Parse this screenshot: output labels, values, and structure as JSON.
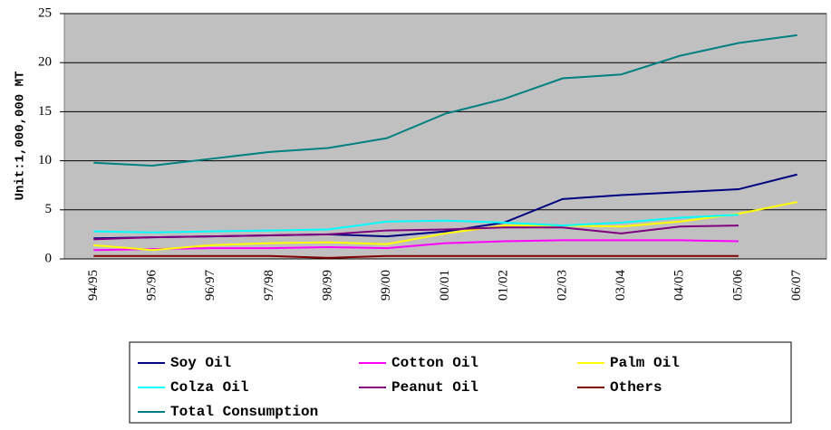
{
  "chart_data": {
    "type": "line",
    "y_label": "Unit:1,000,000 MT",
    "categories": [
      "94/95",
      "95/96",
      "96/97",
      "97/98",
      "98/99",
      "99/00",
      "00/01",
      "01/02",
      "02/03",
      "03/04",
      "04/05",
      "05/06",
      "06/07"
    ],
    "ylim": [
      0,
      25
    ],
    "yticks": [
      0,
      5,
      10,
      15,
      20,
      25
    ],
    "grid": true,
    "series": [
      {
        "name": "Soy Oil",
        "color": "#000080",
        "values": [
          2.1,
          2.2,
          2.3,
          2.4,
          2.5,
          2.3,
          2.8,
          3.7,
          6.1,
          6.5,
          6.8,
          7.1,
          8.6
        ]
      },
      {
        "name": "Cotton Oil",
        "color": "#ff00ff",
        "values": [
          0.9,
          1.0,
          1.1,
          1.1,
          1.2,
          1.1,
          1.6,
          1.8,
          1.9,
          1.9,
          1.9,
          1.8,
          null
        ]
      },
      {
        "name": "Palm Oil",
        "color": "#ffff00",
        "values": [
          1.4,
          0.9,
          1.4,
          1.6,
          1.7,
          1.5,
          2.6,
          3.4,
          3.4,
          3.3,
          3.8,
          4.6,
          5.8
        ]
      },
      {
        "name": "Colza Oil",
        "color": "#00ffff",
        "values": [
          2.8,
          2.7,
          2.8,
          2.9,
          3.0,
          3.8,
          3.9,
          3.7,
          3.4,
          3.7,
          4.2,
          4.5,
          null
        ]
      },
      {
        "name": "Peanut Oil",
        "color": "#800080",
        "values": [
          2.0,
          2.2,
          2.3,
          2.4,
          2.5,
          2.9,
          3.0,
          3.2,
          3.2,
          2.6,
          3.3,
          3.4,
          null
        ]
      },
      {
        "name": "Others",
        "color": "#800000",
        "values": [
          0.3,
          0.3,
          0.3,
          0.3,
          0.1,
          0.3,
          0.3,
          0.3,
          0.3,
          0.3,
          0.3,
          0.3,
          null
        ]
      },
      {
        "name": "Total Consumption",
        "color": "#008080",
        "values": [
          9.8,
          9.5,
          10.2,
          10.9,
          11.3,
          12.3,
          14.8,
          16.3,
          18.4,
          18.8,
          20.7,
          22.0,
          22.8
        ]
      }
    ]
  }
}
